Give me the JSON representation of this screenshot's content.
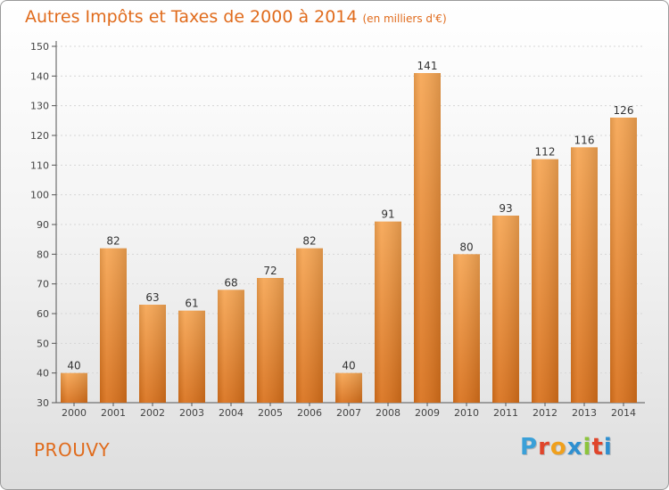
{
  "header": {
    "title": "Autres Impôts et Taxes de 2000 à 2014",
    "unit": "(en milliers d'€)"
  },
  "footer": {
    "place": "PROUVY",
    "brand": "Proxiti"
  },
  "colors": {
    "bar_top": "#f6a552",
    "bar_bottom": "#d9701a",
    "title": "#e06b1c"
  },
  "chart_data": {
    "type": "bar",
    "title": "Autres Impôts et Taxes de 2000 à 2014",
    "subtitle": "(en milliers d'€)",
    "categories": [
      "2000",
      "2001",
      "2002",
      "2003",
      "2004",
      "2005",
      "2006",
      "2007",
      "2008",
      "2009",
      "2010",
      "2011",
      "2012",
      "2013",
      "2014"
    ],
    "values": [
      40,
      82,
      63,
      61,
      68,
      72,
      82,
      40,
      91,
      141,
      80,
      93,
      112,
      116,
      126
    ],
    "ylim": [
      30,
      150
    ],
    "yticks": [
      30,
      40,
      50,
      60,
      70,
      80,
      90,
      100,
      110,
      120,
      130,
      140,
      150
    ],
    "grid": true,
    "data_labels": true
  }
}
